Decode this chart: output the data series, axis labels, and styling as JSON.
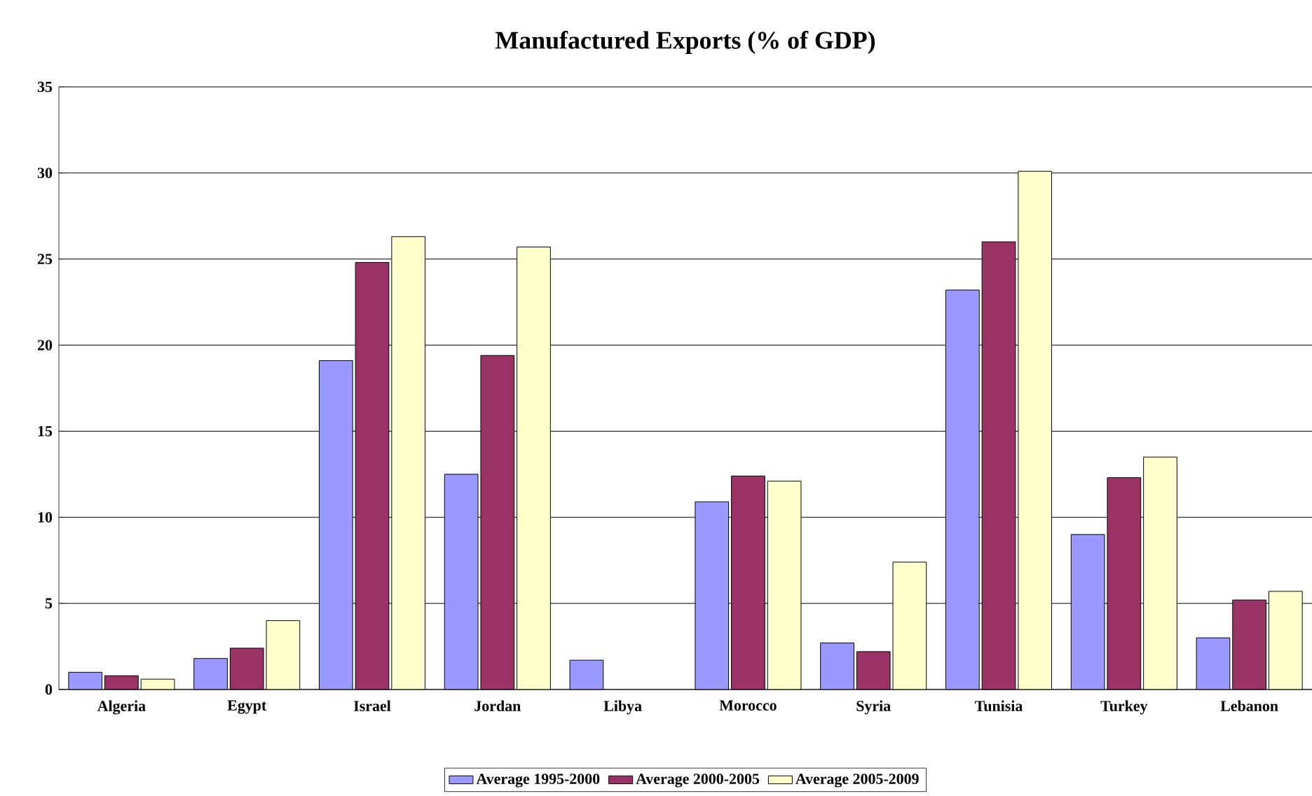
{
  "chart_data": {
    "type": "bar",
    "title": "Manufactured Exports (% of GDP)",
    "categories": [
      "Algeria",
      "Egypt",
      "Israel",
      "Jordan",
      "Libya",
      "Morocco",
      "Syria",
      "Tunisia",
      "Turkey",
      "Lebanon"
    ],
    "series": [
      {
        "name": "Average 1995-2000",
        "color": "#9999ff",
        "values": [
          1.0,
          1.8,
          19.1,
          12.5,
          1.7,
          10.9,
          2.7,
          23.2,
          9.0,
          3.0
        ]
      },
      {
        "name": "Average 2000-2005",
        "color": "#993366",
        "values": [
          0.8,
          2.4,
          24.8,
          19.4,
          null,
          12.4,
          2.2,
          26.0,
          12.3,
          5.2
        ]
      },
      {
        "name": "Average 2005-2009",
        "color": "#ffffcc",
        "values": [
          0.6,
          4.0,
          26.3,
          25.7,
          null,
          12.1,
          7.4,
          30.1,
          13.5,
          5.7
        ]
      }
    ],
    "ylim": [
      0,
      35
    ],
    "yticks": [
      0,
      5,
      10,
      15,
      20,
      25,
      30,
      35
    ],
    "grid": "y",
    "legend": "bottom"
  }
}
